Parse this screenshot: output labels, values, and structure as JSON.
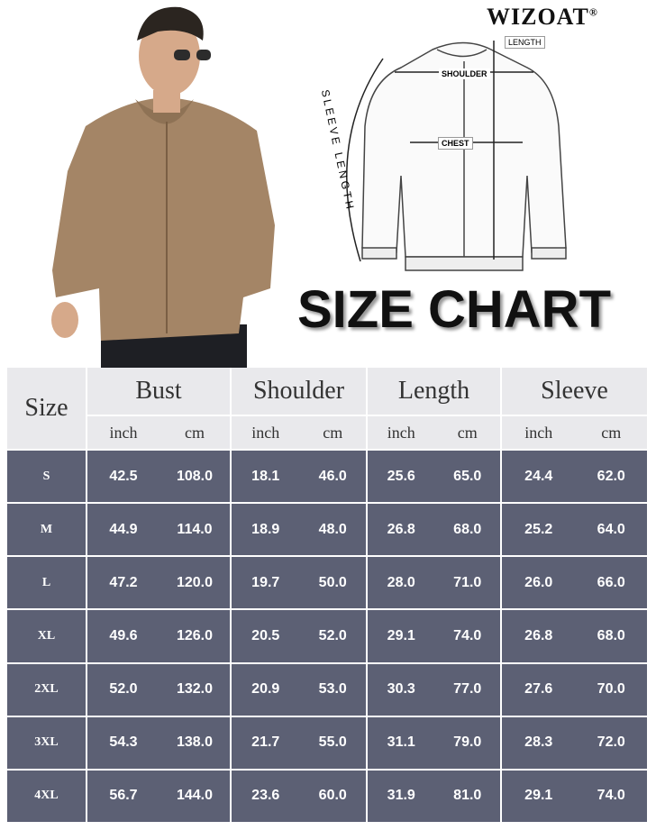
{
  "brand": {
    "name": "WIZOAT",
    "mark": "®"
  },
  "diagram": {
    "length": "LENGTH",
    "shoulder": "SHOULDER",
    "chest": "CHEST",
    "sleeve_length": "SLEEVE LENGTH"
  },
  "title": "SIZE CHART",
  "table": {
    "size_header": "Size",
    "groups": [
      {
        "name": "Bust",
        "units": [
          "inch",
          "cm"
        ]
      },
      {
        "name": "Shoulder",
        "units": [
          "inch",
          "cm"
        ]
      },
      {
        "name": "Length",
        "units": [
          "inch",
          "cm"
        ]
      },
      {
        "name": "Sleeve",
        "units": [
          "inch",
          "cm"
        ]
      }
    ],
    "rows": [
      [
        "S",
        "42.5",
        "108.0",
        "18.1",
        "46.0",
        "25.6",
        "65.0",
        "24.4",
        "62.0"
      ],
      [
        "M",
        "44.9",
        "114.0",
        "18.9",
        "48.0",
        "26.8",
        "68.0",
        "25.2",
        "64.0"
      ],
      [
        "L",
        "47.2",
        "120.0",
        "19.7",
        "50.0",
        "28.0",
        "71.0",
        "26.0",
        "66.0"
      ],
      [
        "XL",
        "49.6",
        "126.0",
        "20.5",
        "52.0",
        "29.1",
        "74.0",
        "26.8",
        "68.0"
      ],
      [
        "2XL",
        "52.0",
        "132.0",
        "20.9",
        "53.0",
        "30.3",
        "77.0",
        "27.6",
        "70.0"
      ],
      [
        "3XL",
        "54.3",
        "138.0",
        "21.7",
        "55.0",
        "31.1",
        "79.0",
        "28.3",
        "72.0"
      ],
      [
        "4XL",
        "56.7",
        "144.0",
        "23.6",
        "60.0",
        "31.9",
        "81.0",
        "29.1",
        "74.0"
      ]
    ]
  }
}
